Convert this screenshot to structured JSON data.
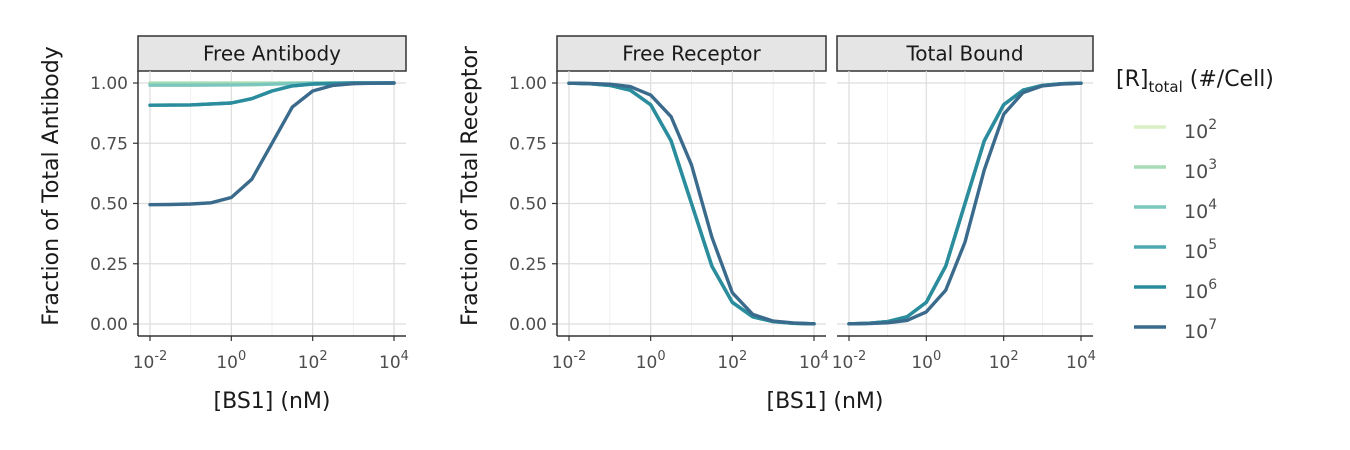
{
  "chart_data": {
    "type": "line",
    "x_scale": "log10",
    "xlim_log10": [
      -2,
      4
    ],
    "ylim": [
      0,
      1
    ],
    "grid": true,
    "x_ticks": [
      {
        "base": "10",
        "exp": "-2"
      },
      {
        "base": "10",
        "exp": "0"
      },
      {
        "base": "10",
        "exp": "2"
      },
      {
        "base": "10",
        "exp": "4"
      }
    ],
    "y_ticks": [
      "0.00",
      "0.25",
      "0.50",
      "0.75",
      "1.00"
    ],
    "legend": {
      "title_main": "[R]",
      "title_sub": "total",
      "title_rest": " (#/Cell)",
      "position": "right",
      "entries": [
        {
          "base": "10",
          "exp": "2",
          "color": "#d9f0c6"
        },
        {
          "base": "10",
          "exp": "3",
          "color": "#a6dbb6"
        },
        {
          "base": "10",
          "exp": "4",
          "color": "#7cc7bd"
        },
        {
          "base": "10",
          "exp": "5",
          "color": "#4ea8b4"
        },
        {
          "base": "10",
          "exp": "6",
          "color": "#2a8c9d"
        },
        {
          "base": "10",
          "exp": "7",
          "color": "#3b6b8c"
        }
      ]
    },
    "panels": [
      {
        "strip": "Free Antibody",
        "xlabel": "[BS1] (nM)",
        "ylabel": "Fraction of Total Antibody",
        "series": [
          {
            "exp": 2,
            "x": [
              -2,
              -1,
              0,
              1,
              2,
              3,
              4
            ],
            "y": [
              1.0,
              1.0,
              1.0,
              1.0,
              1.0,
              1.0,
              1.0
            ]
          },
          {
            "exp": 3,
            "x": [
              -2,
              -1,
              0,
              1,
              2,
              3,
              4
            ],
            "y": [
              0.999,
              0.999,
              0.999,
              0.999,
              1.0,
              1.0,
              1.0
            ]
          },
          {
            "exp": 4,
            "x": [
              -2,
              -1,
              0,
              0.5,
              1,
              1.5,
              2,
              3,
              4
            ],
            "y": [
              0.991,
              0.991,
              0.992,
              0.993,
              0.995,
              0.998,
              0.999,
              1.0,
              1.0
            ]
          },
          {
            "exp": 5,
            "x": [
              -2,
              -1,
              0,
              0.5,
              1,
              1.5,
              2,
              3,
              4
            ],
            "y": [
              0.908,
              0.909,
              0.917,
              0.935,
              0.967,
              0.988,
              0.996,
              1.0,
              1.0
            ]
          },
          {
            "exp": 6,
            "x": [
              -2,
              -1,
              0,
              0.5,
              1,
              1.5,
              2,
              3,
              4
            ],
            "y": [
              0.908,
              0.909,
              0.917,
              0.935,
              0.967,
              0.988,
              0.996,
              1.0,
              1.0
            ]
          },
          {
            "exp": 7,
            "x": [
              -2,
              -1.5,
              -1,
              -0.5,
              0,
              0.5,
              1,
              1.5,
              2,
              2.5,
              3,
              3.5,
              4
            ],
            "y": [
              0.495,
              0.496,
              0.498,
              0.503,
              0.525,
              0.6,
              0.75,
              0.9,
              0.967,
              0.99,
              0.997,
              0.999,
              1.0
            ]
          }
        ]
      },
      {
        "strip": "Free Receptor",
        "xlabel": "[BS1] (nM)",
        "ylabel": "Fraction of Total Receptor",
        "series": [
          {
            "exp": 2,
            "x": [
              -2,
              -1.5,
              -1,
              -0.5,
              0,
              0.5,
              1,
              1.5,
              2,
              2.5,
              3,
              3.5,
              4
            ],
            "y": [
              0.999,
              0.997,
              0.99,
              0.97,
              0.91,
              0.76,
              0.5,
              0.24,
              0.09,
              0.03,
              0.01,
              0.003,
              0.001
            ]
          },
          {
            "exp": 3,
            "x": [
              -2,
              -1.5,
              -1,
              -0.5,
              0,
              0.5,
              1,
              1.5,
              2,
              2.5,
              3,
              3.5,
              4
            ],
            "y": [
              0.999,
              0.997,
              0.99,
              0.97,
              0.91,
              0.76,
              0.5,
              0.24,
              0.09,
              0.03,
              0.01,
              0.003,
              0.001
            ]
          },
          {
            "exp": 4,
            "x": [
              -2,
              -1.5,
              -1,
              -0.5,
              0,
              0.5,
              1,
              1.5,
              2,
              2.5,
              3,
              3.5,
              4
            ],
            "y": [
              0.999,
              0.997,
              0.99,
              0.97,
              0.91,
              0.76,
              0.5,
              0.24,
              0.09,
              0.03,
              0.01,
              0.003,
              0.001
            ]
          },
          {
            "exp": 5,
            "x": [
              -2,
              -1.5,
              -1,
              -0.5,
              0,
              0.5,
              1,
              1.5,
              2,
              2.5,
              3,
              3.5,
              4
            ],
            "y": [
              0.999,
              0.997,
              0.99,
              0.97,
              0.91,
              0.76,
              0.5,
              0.24,
              0.09,
              0.03,
              0.01,
              0.003,
              0.001
            ]
          },
          {
            "exp": 6,
            "x": [
              -2,
              -1.5,
              -1,
              -0.5,
              0,
              0.5,
              1,
              1.5,
              2,
              2.5,
              3,
              3.5,
              4
            ],
            "y": [
              0.999,
              0.997,
              0.99,
              0.97,
              0.91,
              0.76,
              0.5,
              0.24,
              0.09,
              0.03,
              0.01,
              0.003,
              0.001
            ]
          },
          {
            "exp": 7,
            "x": [
              -2,
              -1.5,
              -1,
              -0.5,
              0,
              0.5,
              1,
              1.5,
              2,
              2.5,
              3,
              3.5,
              4
            ],
            "y": [
              0.999,
              0.998,
              0.995,
              0.985,
              0.95,
              0.86,
              0.66,
              0.36,
              0.13,
              0.04,
              0.012,
              0.004,
              0.001
            ]
          }
        ]
      },
      {
        "strip": "Total Bound",
        "xlabel": "",
        "ylabel": "",
        "series": [
          {
            "exp": 2,
            "x": [
              -2,
              -1.5,
              -1,
              -0.5,
              0,
              0.5,
              1,
              1.5,
              2,
              2.5,
              3,
              3.5,
              4
            ],
            "y": [
              0.001,
              0.003,
              0.01,
              0.03,
              0.09,
              0.24,
              0.5,
              0.76,
              0.91,
              0.97,
              0.99,
              0.997,
              0.999
            ]
          },
          {
            "exp": 3,
            "x": [
              -2,
              -1.5,
              -1,
              -0.5,
              0,
              0.5,
              1,
              1.5,
              2,
              2.5,
              3,
              3.5,
              4
            ],
            "y": [
              0.001,
              0.003,
              0.01,
              0.03,
              0.09,
              0.24,
              0.5,
              0.76,
              0.91,
              0.97,
              0.99,
              0.997,
              0.999
            ]
          },
          {
            "exp": 4,
            "x": [
              -2,
              -1.5,
              -1,
              -0.5,
              0,
              0.5,
              1,
              1.5,
              2,
              2.5,
              3,
              3.5,
              4
            ],
            "y": [
              0.001,
              0.003,
              0.01,
              0.03,
              0.09,
              0.24,
              0.5,
              0.76,
              0.91,
              0.97,
              0.99,
              0.997,
              0.999
            ]
          },
          {
            "exp": 5,
            "x": [
              -2,
              -1.5,
              -1,
              -0.5,
              0,
              0.5,
              1,
              1.5,
              2,
              2.5,
              3,
              3.5,
              4
            ],
            "y": [
              0.001,
              0.003,
              0.01,
              0.03,
              0.09,
              0.24,
              0.5,
              0.76,
              0.91,
              0.97,
              0.99,
              0.997,
              0.999
            ]
          },
          {
            "exp": 6,
            "x": [
              -2,
              -1.5,
              -1,
              -0.5,
              0,
              0.5,
              1,
              1.5,
              2,
              2.5,
              3,
              3.5,
              4
            ],
            "y": [
              0.001,
              0.003,
              0.01,
              0.03,
              0.09,
              0.24,
              0.5,
              0.76,
              0.91,
              0.97,
              0.99,
              0.997,
              0.999
            ]
          },
          {
            "exp": 7,
            "x": [
              -2,
              -1.5,
              -1,
              -0.5,
              0,
              0.5,
              1,
              1.5,
              2,
              2.5,
              3,
              3.5,
              4
            ],
            "y": [
              0.001,
              0.002,
              0.005,
              0.015,
              0.05,
              0.14,
              0.34,
              0.64,
              0.87,
              0.96,
              0.988,
              0.996,
              0.999
            ]
          }
        ]
      }
    ]
  }
}
